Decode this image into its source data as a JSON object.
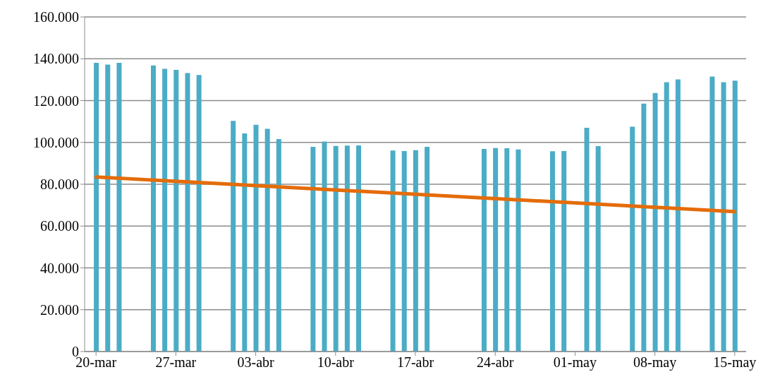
{
  "chart_data": {
    "type": "bar",
    "x": [
      "--03-20",
      "--03-21",
      "--03-22",
      "--03-25",
      "--03-26",
      "--03-27",
      "--03-28",
      "--03-29",
      "--04-01",
      "--04-02",
      "--04-03",
      "--04-04",
      "--04-05",
      "--04-08",
      "--04-09",
      "--04-10",
      "--04-11",
      "--04-12",
      "--04-15",
      "--04-16",
      "--04-17",
      "--04-18",
      "--04-23",
      "--04-24",
      "--04-25",
      "--04-26",
      "--04-29",
      "--04-30",
      "--05-02",
      "--05-03",
      "--05-06",
      "--05-07",
      "--05-08",
      "--05-09",
      "--05-10",
      "--05-13",
      "--05-14",
      "--05-15"
    ],
    "series": [
      {
        "color": "#4bacc6",
        "values": [
          138100,
          137200,
          138100,
          136800,
          135200,
          134700,
          133200,
          132200,
          110300,
          104300,
          108400,
          106500,
          101600,
          97900,
          100400,
          98300,
          98500,
          98600,
          96100,
          95900,
          96300,
          97900,
          96900,
          97300,
          97200,
          96600,
          95800,
          95900,
          107000,
          98200,
          107500,
          118600,
          123600,
          128800,
          130100,
          131500,
          128800,
          129500
        ]
      },
      {
        "type": "line",
        "color": "#e46c0a",
        "x": [
          "--03-20",
          "--05-15"
        ],
        "values": [
          83500,
          66900
        ]
      }
    ],
    "xlim": [
      "--03-19",
      "--05-16"
    ],
    "xticks": [
      {
        "value": "--03-20",
        "label": "20-mar"
      },
      {
        "value": "--03-27",
        "label": "27-mar"
      },
      {
        "value": "--04-03",
        "label": "03-abr"
      },
      {
        "value": "--04-10",
        "label": "10-abr"
      },
      {
        "value": "--04-17",
        "label": "17-abr"
      },
      {
        "value": "--04-24",
        "label": "24-abr"
      },
      {
        "value": "--05-01",
        "label": "01-may"
      },
      {
        "value": "--05-08",
        "label": "08-may"
      },
      {
        "value": "--05-15",
        "label": "15-may"
      }
    ],
    "ylim": [
      0,
      160000
    ],
    "yticks": [
      {
        "value": 0,
        "label": "0"
      },
      {
        "value": 20000,
        "label": "20.000"
      },
      {
        "value": 40000,
        "label": "40.000"
      },
      {
        "value": 60000,
        "label": "60.000"
      },
      {
        "value": 80000,
        "label": "80.000"
      },
      {
        "value": 100000,
        "label": "100.000"
      },
      {
        "value": 120000,
        "label": "120.000"
      },
      {
        "value": 140000,
        "label": "140.000"
      },
      {
        "value": 160000,
        "label": "160.000"
      }
    ],
    "grid": "y",
    "marker": "none",
    "line_style": "solid"
  }
}
